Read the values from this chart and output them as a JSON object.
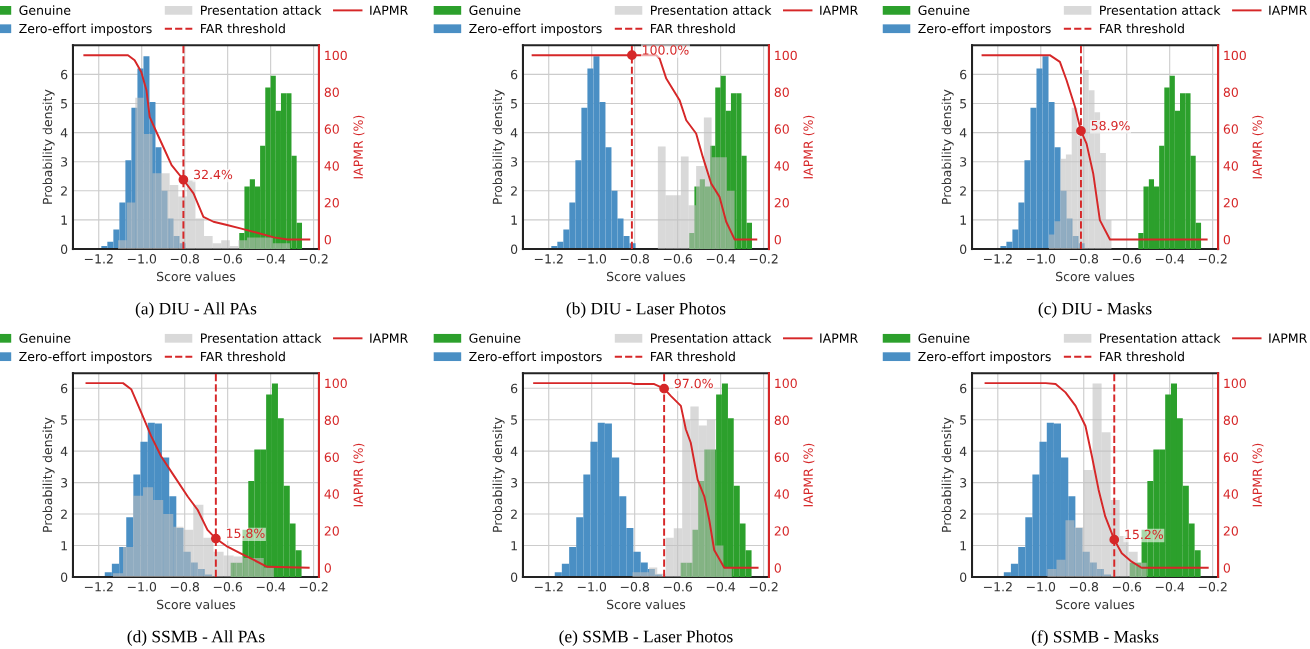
{
  "chart_data": [
    {
      "type": "histogram",
      "title": "(a) DIU - All PAs",
      "xlabel": "Score values",
      "ylabel": "Probability density",
      "y2label": "IAPMR (%)",
      "legend": "top",
      "grid": true,
      "xlim": [
        -1.32,
        -0.175
      ],
      "xticks": [
        {
          "value": -1.2,
          "label": "−1.2"
        },
        {
          "value": -1.0,
          "label": "−1.0"
        },
        {
          "value": -0.8,
          "label": "−0.8"
        },
        {
          "value": -0.6,
          "label": "−0.6"
        },
        {
          "value": -0.4,
          "label": "−0.4"
        },
        {
          "value": -0.2,
          "label": "−0.2"
        }
      ],
      "ylim": [
        0,
        7.0
      ],
      "yticks": [
        0,
        1,
        2,
        3,
        4,
        5,
        6
      ],
      "y2lim": [
        -5.2,
        105.4
      ],
      "y2ticks": [
        0,
        20,
        40,
        60,
        80,
        100
      ],
      "series": [
        {
          "name": "Genuine",
          "color": "#2ca02c",
          "bins": [
            -0.546,
            -0.522,
            -0.497,
            -0.473,
            -0.449,
            -0.425,
            -0.4,
            -0.376,
            -0.352,
            -0.327,
            -0.303,
            -0.279,
            -0.254
          ],
          "values": [
            0.55,
            2.15,
            2.4,
            2.15,
            3.55,
            5.55,
            5.95,
            4.75,
            5.35,
            5.35,
            3.2,
            0.9
          ]
        },
        {
          "name": "Zero-effort impostors",
          "color": "#4a8fc4",
          "bins": [
            -1.188,
            -1.16,
            -1.132,
            -1.104,
            -1.076,
            -1.048,
            -1.02,
            -0.992,
            -0.964,
            -0.936,
            -0.908,
            -0.88,
            -0.852,
            -0.824,
            -0.796,
            -0.768
          ],
          "values": [
            0.1,
            0.25,
            0.67,
            1.6,
            3.05,
            4.85,
            6.2,
            6.62,
            5.05,
            3.5,
            2.0,
            1.05,
            0.45,
            0.2,
            null
          ]
        },
        {
          "name": "Presentation attack",
          "color": "#c0c0c0",
          "bins": [
            -1.11,
            -1.07,
            -1.03,
            -0.99,
            -0.95,
            -0.91,
            -0.87,
            -0.83,
            -0.79,
            -0.75,
            -0.71,
            -0.67,
            -0.63,
            -0.59,
            -0.55,
            -0.51,
            -0.47,
            -0.43,
            -0.39,
            -0.35,
            -0.31
          ],
          "values": [
            0.3,
            1.6,
            5.2,
            3.95,
            2.6,
            2.6,
            2.2,
            1.8,
            2.35,
            1.05,
            0.45,
            0.2,
            0.3,
            0.1,
            0.3,
            0.4,
            0.4,
            0.4,
            0.2,
            0.2
          ]
        },
        {
          "name": "IAPMR",
          "type": "line",
          "axis": "y2",
          "color": "#d62728",
          "x": [
            -1.267,
            -1.064,
            -1.033,
            -1.002,
            -0.978,
            -0.963,
            -0.939,
            -0.9,
            -0.861,
            -0.806,
            -0.759,
            -0.713,
            -0.666,
            -0.603,
            -0.541,
            -0.463,
            -0.384,
            -0.322,
            -0.22
          ],
          "values": [
            100,
            100,
            97.3,
            90.9,
            81.0,
            66.5,
            60.2,
            50.3,
            40.3,
            32.4,
            25.0,
            12.3,
            9.6,
            7.8,
            6.0,
            3.6,
            1.1,
            0,
            0
          ]
        },
        {
          "type": "scatter",
          "axis": "y2",
          "color": "#d62728",
          "marker": "circle",
          "x": [
            -0.806
          ],
          "values": [
            32.4
          ]
        }
      ],
      "ref_lines": [
        {
          "axis": "x",
          "value": -0.806,
          "label": "FAR threshold",
          "color": "#d62728",
          "line_style": "dashed"
        }
      ],
      "annotations": [
        "32.4%"
      ]
    },
    {
      "type": "histogram",
      "title": "(b) DIU - Laser Photos",
      "xlabel": "Score values",
      "ylabel": "Probability density",
      "y2label": "IAPMR (%)",
      "legend": "top",
      "grid": true,
      "xlim": [
        -1.32,
        -0.175
      ],
      "xticks": [
        {
          "value": -1.2,
          "label": "−1.2"
        },
        {
          "value": -1.0,
          "label": "−1.0"
        },
        {
          "value": -0.8,
          "label": "−0.8"
        },
        {
          "value": -0.6,
          "label": "−0.6"
        },
        {
          "value": -0.4,
          "label": "−0.4"
        },
        {
          "value": -0.2,
          "label": "−0.2"
        }
      ],
      "ylim": [
        0,
        7.0
      ],
      "yticks": [
        0,
        1,
        2,
        3,
        4,
        5,
        6
      ],
      "y2lim": [
        -5.2,
        105.4
      ],
      "y2ticks": [
        0,
        20,
        40,
        60,
        80,
        100
      ],
      "series": [
        {
          "name": "Genuine",
          "color": "#2ca02c",
          "bins": [
            -0.546,
            -0.522,
            -0.497,
            -0.473,
            -0.449,
            -0.425,
            -0.4,
            -0.376,
            -0.352,
            -0.327,
            -0.303,
            -0.279,
            -0.254
          ],
          "values": [
            0.55,
            2.15,
            2.4,
            2.15,
            3.55,
            5.55,
            5.95,
            4.75,
            5.35,
            5.35,
            3.2,
            0.9
          ]
        },
        {
          "name": "Zero-effort impostors",
          "color": "#4a8fc4",
          "bins": [
            -1.188,
            -1.16,
            -1.132,
            -1.104,
            -1.076,
            -1.048,
            -1.02,
            -0.992,
            -0.964,
            -0.936,
            -0.908,
            -0.88,
            -0.852,
            -0.824,
            -0.796,
            -0.768
          ],
          "values": [
            0.1,
            0.25,
            0.67,
            1.6,
            3.05,
            4.85,
            6.2,
            6.62,
            5.05,
            3.5,
            2.0,
            1.05,
            0.45,
            0.2,
            null
          ]
        },
        {
          "name": "Presentation attack",
          "color": "#c0c0c0",
          "bins": [
            -0.692,
            -0.656,
            -0.621,
            -0.585,
            -0.549,
            -0.514,
            -0.478,
            -0.442,
            -0.406,
            -0.371,
            -0.335
          ],
          "values": [
            3.52,
            1.85,
            1.85,
            3.18,
            1.5,
            2.85,
            4.52,
            3.15,
            3.15,
            2.0
          ]
        },
        {
          "name": "IAPMR",
          "type": "line",
          "axis": "y2",
          "color": "#d62728",
          "x": [
            -1.275,
            -0.7,
            -0.684,
            -0.653,
            -0.591,
            -0.56,
            -0.514,
            -0.483,
            -0.444,
            -0.405,
            -0.374,
            -0.335,
            -0.234
          ],
          "values": [
            100,
            100,
            98.2,
            87.3,
            75.6,
            64.7,
            57.5,
            44.8,
            30.4,
            23.1,
            9.6,
            0,
            0
          ]
        },
        {
          "type": "scatter",
          "axis": "y2",
          "color": "#d62728",
          "marker": "circle",
          "x": [
            -0.813
          ],
          "values": [
            100
          ]
        }
      ],
      "ref_lines": [
        {
          "axis": "x",
          "value": -0.813,
          "label": "FAR threshold",
          "color": "#d62728",
          "line_style": "dashed"
        }
      ],
      "annotations": [
        "100.0%"
      ]
    },
    {
      "type": "histogram",
      "title": "(c) DIU - Masks",
      "xlabel": "Score values",
      "ylabel": "Probability density",
      "y2label": "IAPMR (%)",
      "legend": "top",
      "grid": true,
      "xlim": [
        -1.32,
        -0.175
      ],
      "xticks": [
        {
          "value": -1.2,
          "label": "−1.2"
        },
        {
          "value": -1.0,
          "label": "−1.0"
        },
        {
          "value": -0.8,
          "label": "−0.8"
        },
        {
          "value": -0.6,
          "label": "−0.6"
        },
        {
          "value": -0.4,
          "label": "−0.4"
        },
        {
          "value": -0.2,
          "label": "−0.2"
        }
      ],
      "ylim": [
        0,
        7.0
      ],
      "yticks": [
        0,
        1,
        2,
        3,
        4,
        5,
        6
      ],
      "y2lim": [
        -5.2,
        105.4
      ],
      "y2ticks": [
        0,
        20,
        40,
        60,
        80,
        100
      ],
      "series": [
        {
          "name": "Genuine",
          "color": "#2ca02c",
          "bins": [
            -0.546,
            -0.522,
            -0.497,
            -0.473,
            -0.449,
            -0.425,
            -0.4,
            -0.376,
            -0.352,
            -0.327,
            -0.303,
            -0.279,
            -0.254
          ],
          "values": [
            0.55,
            2.15,
            2.4,
            2.15,
            3.55,
            5.55,
            5.95,
            4.75,
            5.35,
            5.35,
            3.2,
            0.9
          ]
        },
        {
          "name": "Zero-effort impostors",
          "color": "#4a8fc4",
          "bins": [
            -1.188,
            -1.16,
            -1.132,
            -1.104,
            -1.076,
            -1.048,
            -1.02,
            -0.992,
            -0.964,
            -0.936,
            -0.908,
            -0.88,
            -0.852,
            -0.824,
            -0.796,
            -0.768
          ],
          "values": [
            0.1,
            0.25,
            0.67,
            1.6,
            3.05,
            4.85,
            6.2,
            6.62,
            5.05,
            3.5,
            2.0,
            1.05,
            0.45,
            0.2,
            null
          ]
        },
        {
          "name": "Presentation attack",
          "color": "#c0c0c0",
          "bins": [
            -0.962,
            -0.936,
            -0.909,
            -0.883,
            -0.856,
            -0.83,
            -0.803,
            -0.777,
            -0.75,
            -0.724,
            -0.697,
            -0.671
          ],
          "values": [
            0.5,
            0.95,
            3.1,
            3.25,
            4.85,
            3.9,
            6.15,
            5.45,
            4.7,
            3.3,
            1.0
          ]
        },
        {
          "name": "IAPMR",
          "type": "line",
          "axis": "y2",
          "color": "#d62728",
          "x": [
            -1.271,
            -0.958,
            -0.911,
            -0.88,
            -0.841,
            -0.813,
            -0.787,
            -0.756,
            -0.725,
            -0.678,
            -0.228
          ],
          "values": [
            100,
            100,
            96.4,
            86.4,
            72.0,
            58.9,
            52.0,
            35.8,
            10.5,
            0,
            0
          ]
        },
        {
          "type": "scatter",
          "axis": "y2",
          "color": "#d62728",
          "marker": "circle",
          "x": [
            -0.813
          ],
          "values": [
            58.9
          ]
        }
      ],
      "ref_lines": [
        {
          "axis": "x",
          "value": -0.813,
          "label": "FAR threshold",
          "color": "#d62728",
          "line_style": "dashed"
        }
      ],
      "annotations": [
        "58.9%"
      ]
    },
    {
      "type": "histogram",
      "title": "(d) SSMB - All PAs",
      "xlabel": "Score values",
      "ylabel": "Probability density",
      "y2label": "IAPMR (%)",
      "legend": "top",
      "grid": true,
      "xlim": [
        -1.32,
        -0.175
      ],
      "xticks": [
        {
          "value": -1.2,
          "label": "−1.2"
        },
        {
          "value": -1.0,
          "label": "−1.0"
        },
        {
          "value": -0.8,
          "label": "−0.8"
        },
        {
          "value": -0.6,
          "label": "−0.6"
        },
        {
          "value": -0.4,
          "label": "−0.4"
        },
        {
          "value": -0.2,
          "label": "−0.2"
        }
      ],
      "ylim": [
        0,
        6.48
      ],
      "yticks": [
        0,
        1,
        2,
        3,
        4,
        5,
        6
      ],
      "y2lim": [
        -5.0,
        105.4
      ],
      "y2ticks": [
        0,
        20,
        40,
        60,
        80,
        100
      ],
      "series": [
        {
          "name": "Genuine",
          "color": "#2ca02c",
          "bins": [
            -0.586,
            -0.559,
            -0.531,
            -0.504,
            -0.476,
            -0.449,
            -0.421,
            -0.394,
            -0.366,
            -0.339,
            -0.311,
            -0.284,
            -0.256
          ],
          "values": [
            0.45,
            0.45,
            1.5,
            3.05,
            4.05,
            4.05,
            5.8,
            6.15,
            5.05,
            2.9,
            1.7,
            0.85
          ]
        },
        {
          "name": "Zero-effort impostors",
          "color": "#4a8fc4",
          "bins": [
            -1.172,
            -1.139,
            -1.105,
            -1.072,
            -1.039,
            -1.006,
            -0.972,
            -0.939,
            -0.906,
            -0.872,
            -0.839,
            -0.806,
            -0.772,
            -0.739,
            -0.706,
            -0.673
          ],
          "values": [
            0.15,
            0.42,
            0.95,
            1.9,
            3.26,
            4.3,
            4.9,
            4.88,
            3.8,
            2.57,
            1.56,
            0.8,
            0.46,
            0.25,
            0.08
          ]
        },
        {
          "name": "Presentation attack",
          "color": "#c0c0c0",
          "bins": [
            -1.134,
            -1.087,
            -1.04,
            -0.994,
            -0.947,
            -0.9,
            -0.853,
            -0.806,
            -0.76,
            -0.713,
            -0.666,
            -0.619,
            -0.572,
            -0.526,
            -0.479,
            -0.432,
            -0.385
          ],
          "values": [
            0.12,
            0.95,
            2.58,
            2.85,
            2.45,
            2.0,
            1.6,
            1.5,
            2.3,
            1.25,
            0.8,
            0.68,
            0.65,
            0.6,
            0.6,
            0.3
          ]
        },
        {
          "name": "IAPMR",
          "type": "line",
          "axis": "y2",
          "color": "#d62728",
          "x": [
            -1.257,
            -1.087,
            -1.049,
            -1.002,
            -0.956,
            -0.91,
            -0.848,
            -0.786,
            -0.74,
            -0.694,
            -0.655,
            -0.601,
            -0.54,
            -0.478,
            -0.416,
            -0.223
          ],
          "values": [
            100,
            100,
            96.7,
            84.0,
            71.3,
            60.4,
            49.5,
            38.6,
            31.4,
            20.5,
            15.8,
            11.4,
            7.8,
            4.2,
            0.5,
            0
          ]
        },
        {
          "type": "scatter",
          "axis": "y2",
          "color": "#d62728",
          "marker": "circle",
          "x": [
            -0.655
          ],
          "values": [
            15.8
          ]
        }
      ],
      "ref_lines": [
        {
          "axis": "x",
          "value": -0.655,
          "label": "FAR threshold",
          "color": "#d62728",
          "line_style": "dashed"
        }
      ],
      "annotations": [
        "15.8%"
      ]
    },
    {
      "type": "histogram",
      "title": "(e) SSMB - Laser Photos",
      "xlabel": "Score values",
      "ylabel": "Probability density",
      "y2label": "IAPMR (%)",
      "legend": "top",
      "grid": true,
      "xlim": [
        -1.32,
        -0.175
      ],
      "xticks": [
        {
          "value": -1.2,
          "label": "−1.2"
        },
        {
          "value": -1.0,
          "label": "−1.0"
        },
        {
          "value": -0.8,
          "label": "−0.8"
        },
        {
          "value": -0.6,
          "label": "−0.6"
        },
        {
          "value": -0.4,
          "label": "−0.4"
        },
        {
          "value": -0.2,
          "label": "−0.2"
        }
      ],
      "ylim": [
        0,
        6.48
      ],
      "yticks": [
        0,
        1,
        2,
        3,
        4,
        5,
        6
      ],
      "y2lim": [
        -5.0,
        105.4
      ],
      "y2ticks": [
        0,
        20,
        40,
        60,
        80,
        100
      ],
      "series": [
        {
          "name": "Genuine",
          "color": "#2ca02c",
          "bins": [
            -0.586,
            -0.559,
            -0.531,
            -0.504,
            -0.476,
            -0.449,
            -0.421,
            -0.394,
            -0.366,
            -0.339,
            -0.311,
            -0.284,
            -0.256
          ],
          "values": [
            0.45,
            0.45,
            1.5,
            3.05,
            4.05,
            4.05,
            5.8,
            6.15,
            5.05,
            2.9,
            1.7,
            0.85
          ]
        },
        {
          "name": "Zero-effort impostors",
          "color": "#4a8fc4",
          "bins": [
            -1.172,
            -1.139,
            -1.105,
            -1.072,
            -1.039,
            -1.006,
            -0.972,
            -0.939,
            -0.906,
            -0.872,
            -0.839,
            -0.806,
            -0.772,
            -0.739,
            -0.706,
            -0.673
          ],
          "values": [
            0.15,
            0.42,
            0.95,
            1.9,
            3.26,
            4.3,
            4.9,
            4.88,
            3.8,
            2.57,
            1.56,
            0.8,
            0.46,
            0.25,
            0.08
          ]
        },
        {
          "name": "Presentation attack",
          "color": "#c0c0c0",
          "bins": [
            -0.81,
            -0.772,
            -0.733,
            -0.695,
            -0.656,
            -0.618,
            -0.579,
            -0.541,
            -0.502,
            -0.464,
            -0.425,
            -0.387,
            -0.348
          ],
          "values": [
            0.15,
            0.15,
            0.3,
            0.1,
            1.25,
            1.55,
            5.0,
            5.42,
            4.82,
            5.0,
            1.0,
            0.3
          ]
        },
        {
          "name": "IAPMR",
          "type": "line",
          "axis": "y2",
          "color": "#d62728",
          "x": [
            -1.268,
            -0.818,
            -0.802,
            -0.709,
            -0.663,
            -0.632,
            -0.585,
            -0.562,
            -0.539,
            -0.507,
            -0.476,
            -0.453,
            -0.43,
            -0.383,
            -0.228
          ],
          "values": [
            100,
            100,
            99.5,
            99.5,
            97.0,
            93.1,
            87.7,
            75.0,
            67.7,
            47.7,
            38.7,
            26.0,
            9.6,
            0,
            0
          ]
        },
        {
          "type": "scatter",
          "axis": "y2",
          "color": "#d62728",
          "marker": "circle",
          "x": [
            -0.663
          ],
          "values": [
            97.0
          ]
        }
      ],
      "ref_lines": [
        {
          "axis": "x",
          "value": -0.663,
          "label": "FAR threshold",
          "color": "#d62728",
          "line_style": "dashed"
        }
      ],
      "annotations": [
        "97.0%"
      ]
    },
    {
      "type": "histogram",
      "title": "(f) SSMB - Masks",
      "xlabel": "Score values",
      "ylabel": "Probability density",
      "y2label": "IAPMR (%)",
      "legend": "top",
      "grid": true,
      "xlim": [
        -1.32,
        -0.175
      ],
      "xticks": [
        {
          "value": -1.2,
          "label": "−1.2"
        },
        {
          "value": -1.0,
          "label": "−1.0"
        },
        {
          "value": -0.8,
          "label": "−0.8"
        },
        {
          "value": -0.6,
          "label": "−0.6"
        },
        {
          "value": -0.4,
          "label": "−0.4"
        },
        {
          "value": -0.2,
          "label": "−0.2"
        }
      ],
      "ylim": [
        0,
        6.48
      ],
      "yticks": [
        0,
        1,
        2,
        3,
        4,
        5,
        6
      ],
      "y2lim": [
        -5.0,
        105.4
      ],
      "y2ticks": [
        0,
        20,
        40,
        60,
        80,
        100
      ],
      "series": [
        {
          "name": "Genuine",
          "color": "#2ca02c",
          "bins": [
            -0.586,
            -0.559,
            -0.531,
            -0.504,
            -0.476,
            -0.449,
            -0.421,
            -0.394,
            -0.366,
            -0.339,
            -0.311,
            -0.284,
            -0.256
          ],
          "values": [
            0.45,
            0.45,
            1.5,
            3.05,
            4.05,
            4.05,
            5.8,
            6.15,
            5.05,
            2.9,
            1.7,
            0.85
          ]
        },
        {
          "name": "Zero-effort impostors",
          "color": "#4a8fc4",
          "bins": [
            -1.172,
            -1.139,
            -1.105,
            -1.072,
            -1.039,
            -1.006,
            -0.972,
            -0.939,
            -0.906,
            -0.872,
            -0.839,
            -0.806,
            -0.772,
            -0.739,
            -0.706,
            -0.673
          ],
          "values": [
            0.15,
            0.42,
            0.95,
            1.9,
            3.26,
            4.3,
            4.9,
            4.88,
            3.8,
            2.57,
            1.56,
            0.8,
            0.46,
            0.25,
            0.08
          ]
        },
        {
          "name": "Presentation attack",
          "color": "#c0c0c0",
          "bins": [
            -0.969,
            -0.927,
            -0.885,
            -0.843,
            -0.801,
            -0.759,
            -0.717,
            -0.675,
            -0.633,
            -0.591,
            -0.549,
            -0.507
          ],
          "values": [
            0.25,
            0.55,
            1.8,
            1.58,
            3.4,
            6.15,
            4.6,
            2.45,
            1.3,
            0.8,
            0.45
          ]
        },
        {
          "name": "IAPMR",
          "type": "line",
          "axis": "y2",
          "color": "#d62728",
          "x": [
            -1.257,
            -0.977,
            -0.931,
            -0.885,
            -0.838,
            -0.792,
            -0.762,
            -0.731,
            -0.7,
            -0.658,
            -0.623,
            -0.577,
            -0.531,
            -0.223
          ],
          "values": [
            100,
            100,
            99.5,
            95,
            87.7,
            76.8,
            60.4,
            42.3,
            27.8,
            15.2,
            7.8,
            3.3,
            0,
            0
          ]
        },
        {
          "type": "scatter",
          "axis": "y2",
          "color": "#d62728",
          "marker": "circle",
          "x": [
            -0.658
          ],
          "values": [
            15.2
          ]
        }
      ],
      "ref_lines": [
        {
          "axis": "x",
          "value": -0.658,
          "label": "FAR threshold",
          "color": "#d62728",
          "line_style": "dashed"
        }
      ],
      "annotations": [
        "15.2%"
      ]
    }
  ]
}
